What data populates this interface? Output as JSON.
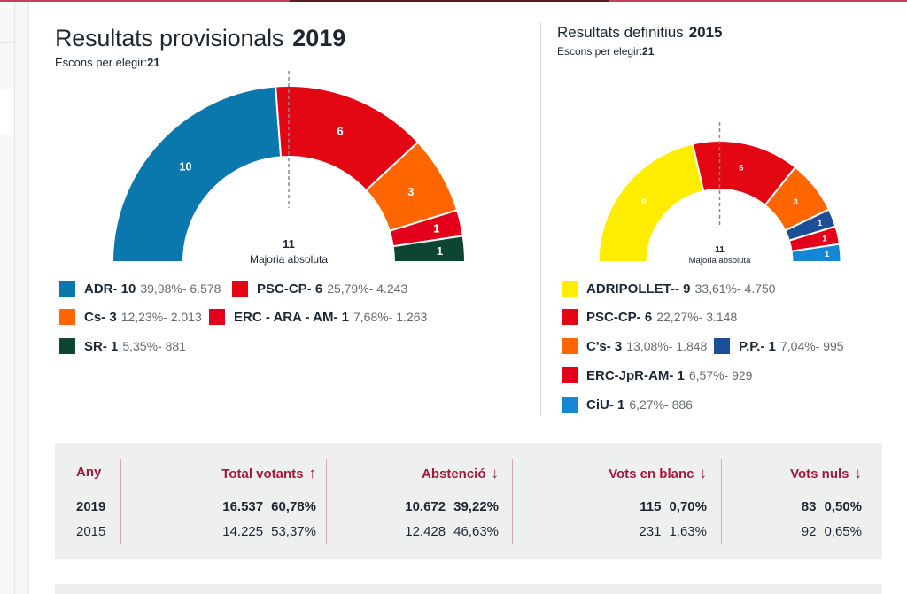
{
  "provisional": {
    "title": "Resultats provisionals",
    "year": "2019",
    "seats_label": "Escons per elegir:",
    "seats_total": "21",
    "majority_value": "11",
    "majority_label": "Majoria absoluta"
  },
  "definitive": {
    "title": "Resultats definitius",
    "year": "2015",
    "seats_label": "Escons per elegir:",
    "seats_total": "21",
    "majority_value": "11",
    "majority_label": "Majoria absoluta"
  },
  "chart_data": [
    {
      "type": "pie",
      "variant": "half-donut parliament",
      "title": "Resultats provisionals 2019",
      "total_seats": 21,
      "majority": 11,
      "majority_label": "Majoria absoluta",
      "series": [
        {
          "name": "ADR",
          "seats": 10,
          "percent": 39.98,
          "votes": 6578,
          "color": "#0a77ad",
          "legend_label": "ADR- 10",
          "legend_detail": "39,98%- 6.578"
        },
        {
          "name": "PSC-CP",
          "seats": 6,
          "percent": 25.79,
          "votes": 4243,
          "color": "#e30613",
          "legend_label": "PSC-CP- 6",
          "legend_detail": "25,79%- 4.243"
        },
        {
          "name": "Cs",
          "seats": 3,
          "percent": 12.23,
          "votes": 2013,
          "color": "#ff6600",
          "legend_label": "Cs- 3",
          "legend_detail": "12,23%- 2.013"
        },
        {
          "name": "ERC - ARA - AM",
          "seats": 1,
          "percent": 7.68,
          "votes": 1263,
          "color": "#e2001a",
          "legend_label": "ERC - ARA - AM- 1",
          "legend_detail": "7,68%- 1.263"
        },
        {
          "name": "SR",
          "seats": 1,
          "percent": 5.35,
          "votes": 881,
          "color": "#0d4532",
          "legend_label": "SR- 1",
          "legend_detail": "5,35%- 881"
        }
      ]
    },
    {
      "type": "pie",
      "variant": "half-donut parliament",
      "title": "Resultats definitius 2015",
      "total_seats": 21,
      "majority": 11,
      "majority_label": "Majoria absoluta",
      "series": [
        {
          "name": "ADRIPOLLET-",
          "seats": 9,
          "percent": 33.61,
          "votes": 4750,
          "color": "#ffed00",
          "legend_label": "ADRIPOLLET-- 9",
          "legend_detail": "33,61%- 4.750"
        },
        {
          "name": "PSC-CP",
          "seats": 6,
          "percent": 22.27,
          "votes": 3148,
          "color": "#e30613",
          "legend_label": "PSC-CP- 6",
          "legend_detail": "22,27%- 3.148"
        },
        {
          "name": "C's",
          "seats": 3,
          "percent": 13.08,
          "votes": 1848,
          "color": "#ff6600",
          "legend_label": "C's- 3",
          "legend_detail": "13,08%- 1.848"
        },
        {
          "name": "P.P.",
          "seats": 1,
          "percent": 7.04,
          "votes": 995,
          "color": "#1c4f97",
          "legend_label": "P.P.- 1",
          "legend_detail": "7,04%- 995"
        },
        {
          "name": "ERC-JpR-AM",
          "seats": 1,
          "percent": 6.57,
          "votes": 929,
          "color": "#e2001a",
          "legend_label": "ERC-JpR-AM- 1",
          "legend_detail": "6,57%- 929"
        },
        {
          "name": "CiU",
          "seats": 1,
          "percent": 6.27,
          "votes": 886,
          "color": "#1487d4",
          "legend_label": "CiU- 1",
          "legend_detail": "6,27%- 886"
        }
      ]
    }
  ],
  "table": {
    "headers": [
      {
        "label": "Any"
      },
      {
        "label": "Total votants",
        "icon": "arrow-up",
        "glyph": "↑"
      },
      {
        "label": "Abstenció",
        "icon": "arrow-down",
        "glyph": "↓"
      },
      {
        "label": "Vots en blanc",
        "icon": "arrow-down",
        "glyph": "↓"
      },
      {
        "label": "Vots nuls",
        "icon": "arrow-down",
        "glyph": "↓"
      }
    ],
    "rows": [
      {
        "year": "2019",
        "total": {
          "count": "16.537",
          "pct": "60,78%"
        },
        "abstention": {
          "count": "10.672",
          "pct": "39,22%"
        },
        "blank": {
          "count": "115",
          "pct": "0,70%"
        },
        "null": {
          "count": "83",
          "pct": "0,50%"
        }
      },
      {
        "year": "2015",
        "total": {
          "count": "14.225",
          "pct": "53,37%"
        },
        "abstention": {
          "count": "12.428",
          "pct": "46,63%"
        },
        "blank": {
          "count": "231",
          "pct": "1,63%"
        },
        "null": {
          "count": "92",
          "pct": "0,65%"
        }
      }
    ]
  }
}
